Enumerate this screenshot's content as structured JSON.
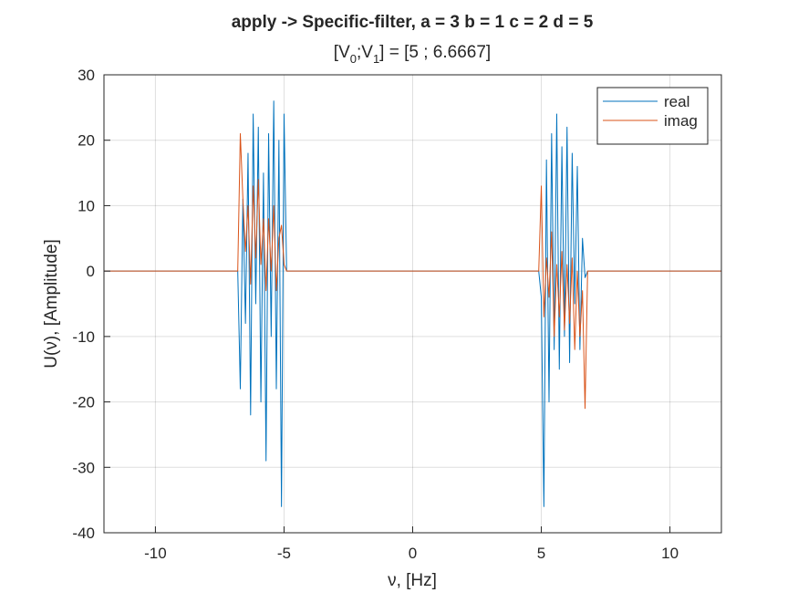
{
  "chart_data": {
    "type": "line",
    "title": "apply -> Specific-filter, a = 3 b = 1 c = 2 d = 5",
    "subtitle": [
      "[V",
      "0",
      ";V",
      "1",
      "] = [5 ; 6.6667]"
    ],
    "xlabel": "ν, [Hz]",
    "ylabel": "U(ν), [Amplitude]",
    "x": [
      -12,
      -6.8,
      -6.7,
      -6.6,
      -6.5,
      -6.4,
      -6.3,
      -6.2,
      -6.1,
      -6.0,
      -5.9,
      -5.8,
      -5.7,
      -5.6,
      -5.5,
      -5.4,
      -5.3,
      -5.2,
      -5.1,
      -5.0,
      -4.9,
      4.9,
      5.0,
      5.1,
      5.2,
      5.3,
      5.4,
      5.5,
      5.6,
      5.7,
      5.8,
      5.9,
      6.0,
      6.1,
      6.2,
      6.3,
      6.4,
      6.5,
      6.6,
      6.7,
      6.8,
      12
    ],
    "series": [
      {
        "name": "real",
        "color": "#0072BD",
        "values": [
          0,
          0,
          -18,
          11,
          -8,
          18,
          -22,
          24,
          -5,
          22,
          -20,
          15,
          -29,
          21,
          -10,
          26,
          -18,
          20,
          -36,
          24,
          0,
          0,
          -4,
          -36,
          17,
          -20,
          21,
          -12,
          24,
          -15,
          19,
          -10,
          22,
          -14,
          18,
          -5,
          16,
          -12,
          5,
          -1,
          0,
          0
        ]
      },
      {
        "name": "imag",
        "color": "#D95319",
        "values": [
          0,
          0,
          21,
          11,
          3,
          10,
          -2,
          13,
          2,
          14,
          1,
          8,
          -3,
          8,
          0,
          10,
          -3,
          5,
          7,
          1,
          0,
          0,
          13,
          -7,
          2,
          -4,
          6,
          -10,
          1,
          -7,
          3,
          -9,
          1,
          -8,
          2,
          -12,
          0,
          -10,
          -3,
          -21,
          0,
          0
        ]
      }
    ],
    "xlim": [
      -12,
      12
    ],
    "xticks": [
      -10,
      -5,
      0,
      5,
      10
    ],
    "ylim": [
      -40,
      30
    ],
    "yticks": [
      -40,
      -30,
      -20,
      -10,
      0,
      10,
      20,
      30
    ],
    "grid": true,
    "legend": "northeast"
  }
}
